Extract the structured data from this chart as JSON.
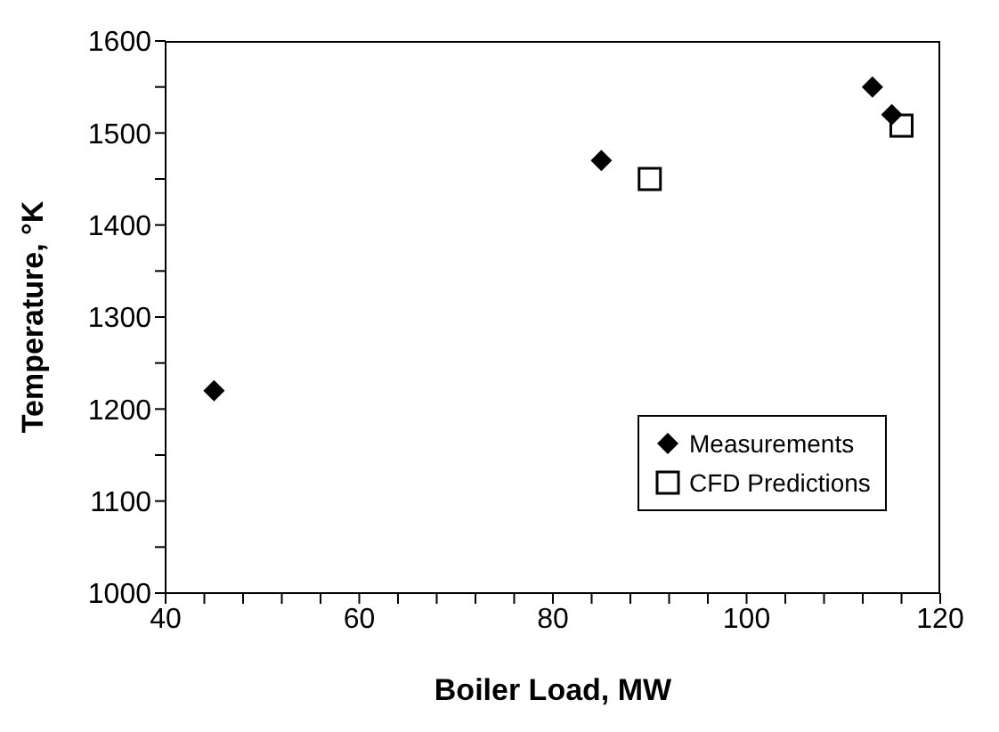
{
  "chart_data": {
    "type": "scatter",
    "xlabel": "Boiler Load, MW",
    "ylabel": "Temperature, °K",
    "xlim": [
      40,
      120
    ],
    "xticks": [
      40,
      {
        "value": 44,
        "label": null
      },
      {
        "value": 48,
        "label": null
      },
      {
        "value": 52,
        "label": null
      },
      {
        "value": 56,
        "label": null
      },
      60,
      {
        "value": 64,
        "label": null
      },
      {
        "value": 68,
        "label": null
      },
      {
        "value": 72,
        "label": null
      },
      {
        "value": 76,
        "label": null
      },
      80,
      {
        "value": 84,
        "label": null
      },
      {
        "value": 88,
        "label": null
      },
      {
        "value": 92,
        "label": null
      },
      {
        "value": 96,
        "label": null
      },
      100,
      {
        "value": 104,
        "label": null
      },
      {
        "value": 108,
        "label": null
      },
      {
        "value": 112,
        "label": null
      },
      {
        "value": 116,
        "label": null
      },
      120
    ],
    "ylim": [
      1000,
      1600
    ],
    "yticks": [
      1000,
      {
        "value": 1050,
        "label": null
      },
      1100,
      {
        "value": 1150,
        "label": null
      },
      1200,
      {
        "value": 1250,
        "label": null
      },
      1300,
      {
        "value": 1350,
        "label": null
      },
      1400,
      {
        "value": 1450,
        "label": null
      },
      1500,
      {
        "value": 1550,
        "label": null
      },
      1600
    ],
    "grid": false,
    "legend": "bottom right",
    "series": [
      {
        "name": "Measurements",
        "color": "#000000",
        "marker": "diamond",
        "x": [
          45,
          85,
          113,
          115
        ],
        "values": [
          1220,
          1470,
          1550,
          1520
        ]
      },
      {
        "name": "CFD Predictions",
        "color": "#000000",
        "marker": "square",
        "x": [
          90,
          116
        ],
        "values": [
          1450,
          1508
        ]
      }
    ]
  }
}
